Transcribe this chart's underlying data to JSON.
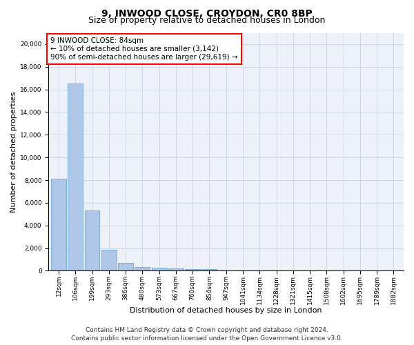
{
  "title1": "9, INWOOD CLOSE, CROYDON, CR0 8BP",
  "title2": "Size of property relative to detached houses in London",
  "xlabel": "Distribution of detached houses by size in London",
  "ylabel": "Number of detached properties",
  "categories": [
    "12sqm",
    "106sqm",
    "199sqm",
    "293sqm",
    "386sqm",
    "480sqm",
    "573sqm",
    "667sqm",
    "760sqm",
    "854sqm",
    "947sqm",
    "1041sqm",
    "1134sqm",
    "1228sqm",
    "1321sqm",
    "1415sqm",
    "1508sqm",
    "1602sqm",
    "1695sqm",
    "1789sqm",
    "1882sqm"
  ],
  "values": [
    8100,
    16500,
    5300,
    1850,
    700,
    350,
    270,
    210,
    170,
    130,
    0,
    0,
    0,
    0,
    0,
    0,
    0,
    0,
    0,
    0,
    0
  ],
  "bar_color": "#aec6e8",
  "bar_edge_color": "#5a9fd4",
  "annotation_text": "9 INWOOD CLOSE: 84sqm\n← 10% of detached houses are smaller (3,142)\n90% of semi-detached houses are larger (29,619) →",
  "annotation_box_color": "white",
  "annotation_box_edge_color": "red",
  "ylim": [
    0,
    21000
  ],
  "yticks": [
    0,
    2000,
    4000,
    6000,
    8000,
    10000,
    12000,
    14000,
    16000,
    18000,
    20000
  ],
  "grid_color": "#d0d8e8",
  "background_color": "#eef2f8",
  "footer_line1": "Contains HM Land Registry data © Crown copyright and database right 2024.",
  "footer_line2": "Contains public sector information licensed under the Open Government Licence v3.0.",
  "title1_fontsize": 10,
  "title2_fontsize": 9,
  "xlabel_fontsize": 8,
  "ylabel_fontsize": 8,
  "tick_fontsize": 6.5,
  "annotation_fontsize": 7.5,
  "footer_fontsize": 6.5
}
